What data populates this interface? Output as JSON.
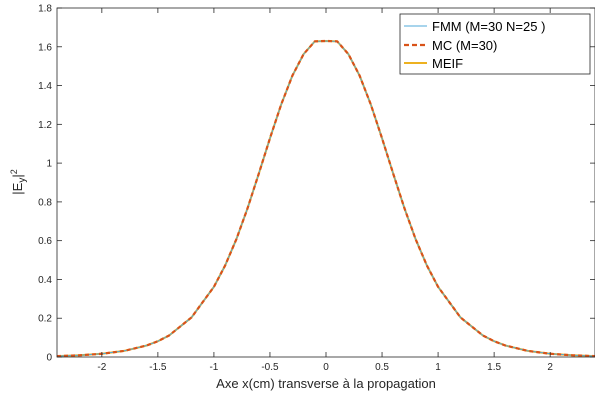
{
  "chart_data": {
    "type": "line",
    "title": "",
    "xlabel": "Axe x(cm)  transverse à la propagation",
    "ylabel": "|E_y|²",
    "ylabel_parts": {
      "base": "|E",
      "sub": "y",
      "tail": "|",
      "sup": "2"
    },
    "xlim": [
      -2.4,
      2.4
    ],
    "ylim": [
      0,
      1.8
    ],
    "xticks": [
      -2,
      -1.5,
      -1,
      -0.5,
      0,
      0.5,
      1,
      1.5,
      2
    ],
    "xtick_labels": [
      "-2",
      "-1.5",
      "-1",
      "-0.5",
      "0",
      "0.5",
      "1",
      "1.5",
      "2"
    ],
    "yticks": [
      0,
      0.2,
      0.4,
      0.6,
      0.8,
      1,
      1.2,
      1.4,
      1.6,
      1.8
    ],
    "ytick_labels": [
      "0",
      "0.2",
      "0.4",
      "0.6",
      "0.8",
      "1",
      "1.2",
      "1.4",
      "1.6",
      "1.8"
    ],
    "grid": false,
    "legend_position": "top-right",
    "x": [
      -2.4,
      -2.2,
      -2.0,
      -1.8,
      -1.6,
      -1.5,
      -1.4,
      -1.2,
      -1.0,
      -0.9,
      -0.8,
      -0.7,
      -0.6,
      -0.5,
      -0.4,
      -0.3,
      -0.2,
      -0.1,
      0.0,
      0.1,
      0.2,
      0.3,
      0.4,
      0.5,
      0.6,
      0.7,
      0.8,
      0.9,
      1.0,
      1.2,
      1.4,
      1.5,
      1.6,
      1.8,
      2.0,
      2.2,
      2.4
    ],
    "series": [
      {
        "name": "FMM (M=30 N=25 )",
        "color": "#4fa8d8",
        "style": "solid",
        "values": [
          0.0045,
          0.0087,
          0.0166,
          0.0315,
          0.0594,
          0.0813,
          0.111,
          0.204,
          0.362,
          0.472,
          0.607,
          0.767,
          0.945,
          1.128,
          1.302,
          1.451,
          1.562,
          1.628,
          1.63,
          1.628,
          1.562,
          1.451,
          1.302,
          1.128,
          0.945,
          0.767,
          0.607,
          0.472,
          0.362,
          0.204,
          0.111,
          0.0813,
          0.0594,
          0.0315,
          0.0166,
          0.0087,
          0.0045
        ]
      },
      {
        "name": "MC (M=30)",
        "color": "#d95319",
        "style": "dashed",
        "values": [
          0.0045,
          0.0087,
          0.0166,
          0.0315,
          0.0594,
          0.0813,
          0.111,
          0.204,
          0.362,
          0.472,
          0.607,
          0.767,
          0.945,
          1.128,
          1.302,
          1.451,
          1.562,
          1.628,
          1.63,
          1.628,
          1.562,
          1.451,
          1.302,
          1.128,
          0.945,
          0.767,
          0.607,
          0.472,
          0.362,
          0.204,
          0.111,
          0.0813,
          0.0594,
          0.0315,
          0.0166,
          0.0087,
          0.0045
        ]
      },
      {
        "name": "MEIF",
        "color": "#edb120",
        "style": "solid",
        "values": [
          0.0045,
          0.0087,
          0.0166,
          0.0315,
          0.0594,
          0.0813,
          0.111,
          0.204,
          0.362,
          0.472,
          0.607,
          0.767,
          0.945,
          1.128,
          1.302,
          1.451,
          1.562,
          1.628,
          1.63,
          1.628,
          1.562,
          1.451,
          1.302,
          1.128,
          0.945,
          0.767,
          0.607,
          0.472,
          0.362,
          0.204,
          0.111,
          0.0813,
          0.0594,
          0.0315,
          0.0166,
          0.0087,
          0.0045
        ]
      }
    ]
  }
}
